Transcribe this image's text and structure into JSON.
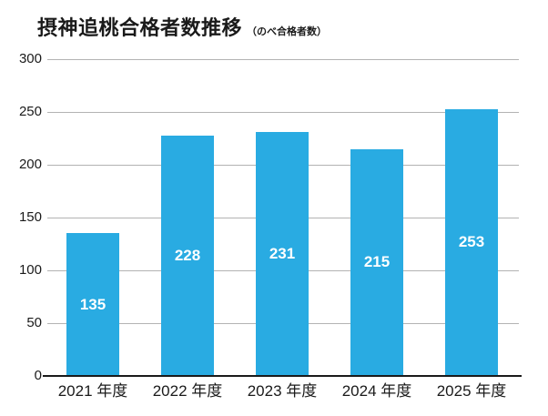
{
  "chart_data": {
    "type": "bar",
    "title": "摂神追桃合格者数推移",
    "subtitle": "（のべ合格者数）",
    "categories": [
      "2021 年度",
      "2022 年度",
      "2023 年度",
      "2024 年度",
      "2025 年度"
    ],
    "values": [
      135,
      228,
      231,
      215,
      253
    ],
    "xlabel": "",
    "ylabel": "",
    "ylim": [
      0,
      300
    ],
    "yticks": [
      0,
      50,
      100,
      150,
      200,
      250,
      300
    ],
    "grid": true,
    "legend": false,
    "value_labels_inside_bars": true,
    "colors": {
      "bar": "#29ABE2",
      "value_label": "#FFFFFF",
      "gridline": "#B3B3B3",
      "axis_line": "#1A1A1A",
      "text": "#1A1A1A"
    }
  }
}
